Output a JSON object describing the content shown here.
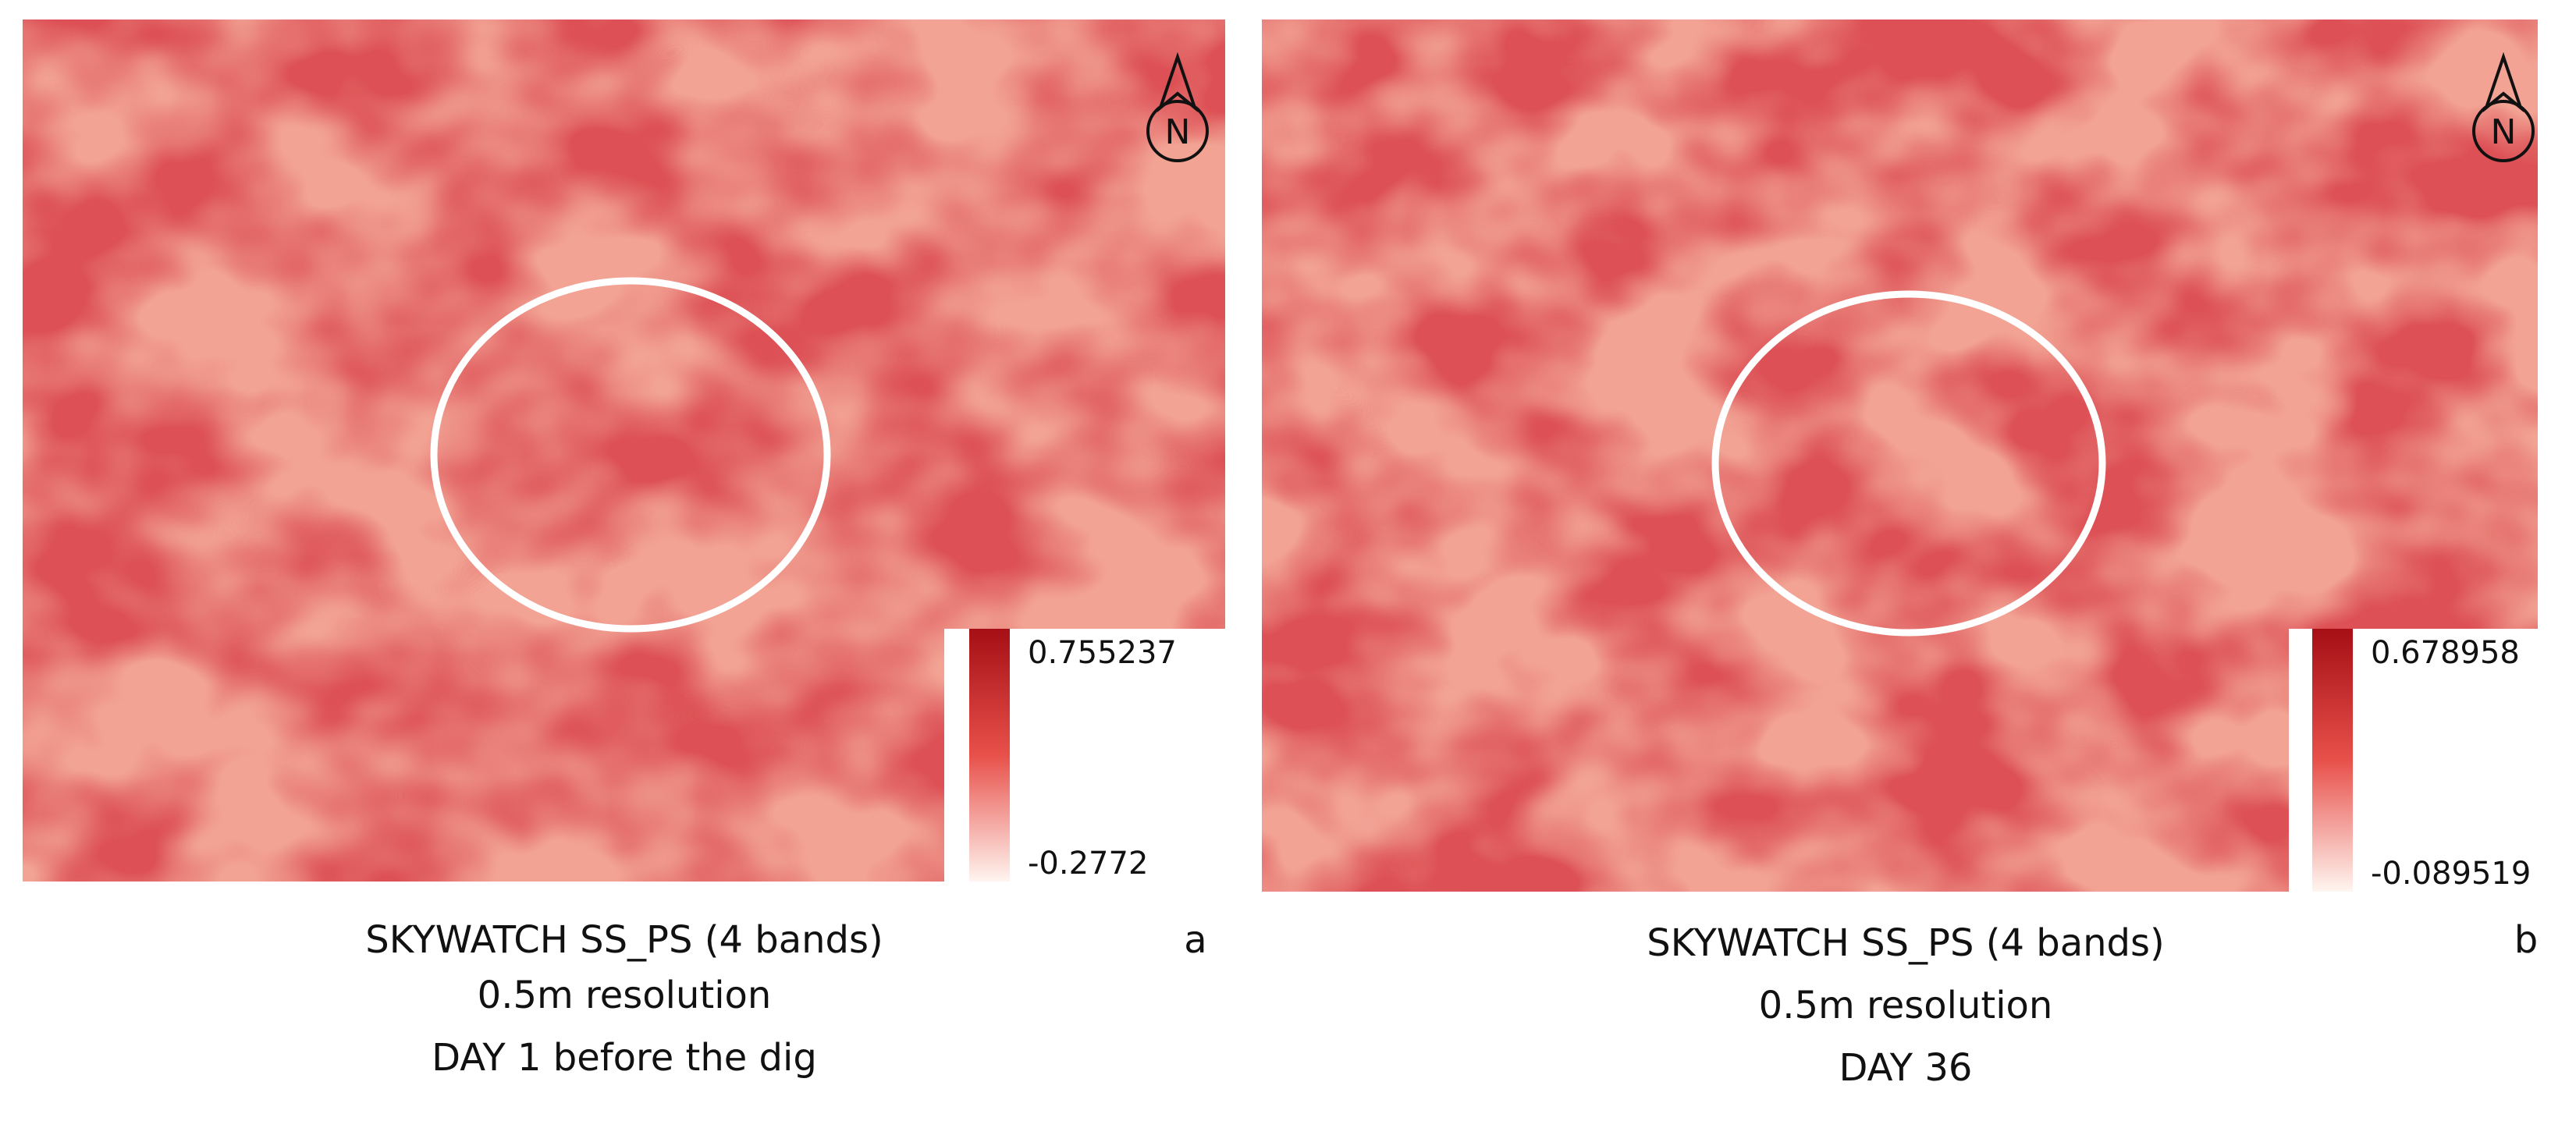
{
  "panels": [
    {
      "letter": "a",
      "north": "N",
      "legend": {
        "max": 0.755237,
        "min": -0.2772
      },
      "caption": [
        "SKYWATCH SS_PS (4 bands)",
        "0.5m resolution",
        "DAY 1 before the dig"
      ]
    },
    {
      "letter": "b",
      "north": "N",
      "legend": {
        "max": 0.678958,
        "min": -0.089519
      },
      "caption": [
        "SKYWATCH SS_PS (4 bands)",
        "0.5m resolution",
        "DAY 36"
      ]
    }
  ]
}
